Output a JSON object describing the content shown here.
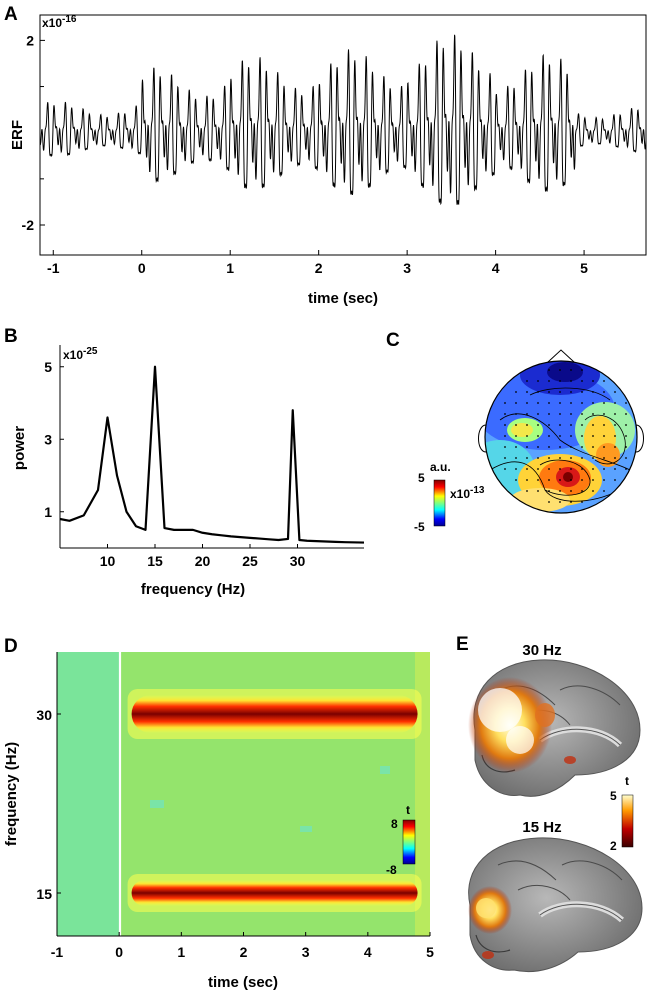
{
  "panels": {
    "a": "A",
    "b": "B",
    "c": "C",
    "d": "D",
    "e": "E"
  },
  "chart_data": [
    {
      "id": "A",
      "type": "line",
      "title": "",
      "xlabel": "time (sec)",
      "ylabel": "ERF",
      "y_exponent": "x10",
      "y_exponent_power": "-16",
      "xlim": [
        -1.15,
        5.7
      ],
      "ylim": [
        -2.65,
        2.55
      ],
      "x_ticks": [
        "-1",
        "0",
        "1",
        "2",
        "3",
        "4",
        "5"
      ],
      "x_tick_values": [
        -1,
        0,
        1,
        2,
        3,
        4,
        5
      ],
      "y_ticks": [
        "-2",
        "2"
      ],
      "y_tick_values": [
        -2,
        2
      ],
      "y_minor_ticks": [
        -1,
        1
      ],
      "signal": {
        "freqs_hz": [
          10,
          15,
          30
        ],
        "segments": [
          {
            "t0": -1.15,
            "t1": 0,
            "amp": 0.7
          },
          {
            "t0": 0,
            "t1": 1.0,
            "amp": 1.45
          },
          {
            "t0": 1.0,
            "t1": 2.0,
            "amp": 1.7
          },
          {
            "t0": 2.0,
            "t1": 3.0,
            "amp": 1.85
          },
          {
            "t0": 3.0,
            "t1": 4.0,
            "amp": 2.2
          },
          {
            "t0": 4.0,
            "t1": 4.9,
            "amp": 1.75
          },
          {
            "t0": 4.9,
            "t1": 5.7,
            "amp": 0.6
          }
        ]
      }
    },
    {
      "id": "B",
      "type": "line",
      "title": "",
      "xlabel": "frequency (Hz)",
      "ylabel": "power",
      "y_exponent": "x10",
      "y_exponent_power": "-25",
      "xlim": [
        5,
        37
      ],
      "ylim": [
        0,
        5.6
      ],
      "x_ticks": [
        "10",
        "15",
        "20",
        "25",
        "30"
      ],
      "x_tick_values": [
        10,
        15,
        20,
        25,
        30
      ],
      "y_ticks": [
        "1",
        "3",
        "5"
      ],
      "y_tick_values": [
        1,
        3,
        5
      ],
      "x": [
        5,
        6,
        7.5,
        9,
        10,
        11,
        12,
        13,
        14,
        15,
        16,
        17,
        18,
        19,
        20,
        21,
        22,
        23,
        24,
        25,
        26,
        27,
        28,
        29,
        29.5,
        30.2,
        31,
        32,
        33,
        34,
        35,
        37
      ],
      "y": [
        0.8,
        0.75,
        0.9,
        1.6,
        3.6,
        2.0,
        1.0,
        0.6,
        0.5,
        5.0,
        0.55,
        0.5,
        0.5,
        0.5,
        0.42,
        0.38,
        0.35,
        0.32,
        0.3,
        0.28,
        0.26,
        0.24,
        0.22,
        0.25,
        3.8,
        0.22,
        0.2,
        0.19,
        0.18,
        0.17,
        0.16,
        0.15
      ]
    },
    {
      "id": "C",
      "type": "heatmap",
      "title": "",
      "colorbar_label": "a.u.",
      "colorbar_exponent": "x10",
      "colorbar_exponent_power": "-13",
      "colorbar_ticks": [
        "5",
        "-5"
      ],
      "clim": [
        -5,
        5
      ]
    },
    {
      "id": "D",
      "type": "heatmap",
      "title": "",
      "xlabel": "time (sec)",
      "ylabel": "frequency (Hz)",
      "xlim": [
        -1,
        5
      ],
      "x_ticks": [
        "-1",
        "0",
        "1",
        "2",
        "3",
        "4",
        "5"
      ],
      "x_tick_values": [
        -1,
        0,
        1,
        2,
        3,
        4,
        5
      ],
      "y_ticks": [
        "30",
        "15"
      ],
      "y_tick_values": [
        30,
        15
      ],
      "bands_hz": [
        30,
        15
      ],
      "band_time_range": [
        0.2,
        4.8
      ],
      "colorbar_label": "t",
      "colorbar_ticks": [
        "8",
        "-8"
      ],
      "clim": [
        -8,
        8
      ]
    },
    {
      "id": "E",
      "type": "heatmap",
      "title": "",
      "view_labels": [
        "30 Hz",
        "15 Hz"
      ],
      "colorbar_label": "t",
      "colorbar_ticks": [
        "5",
        "2"
      ],
      "clim": [
        2,
        5
      ]
    }
  ],
  "colors": {
    "line": "#000000",
    "jet_blue": "#0022cc",
    "jet_red": "#cc1100",
    "spectrogram_bg": "#8ee26a",
    "brain_gray": "#8a8a8a"
  }
}
